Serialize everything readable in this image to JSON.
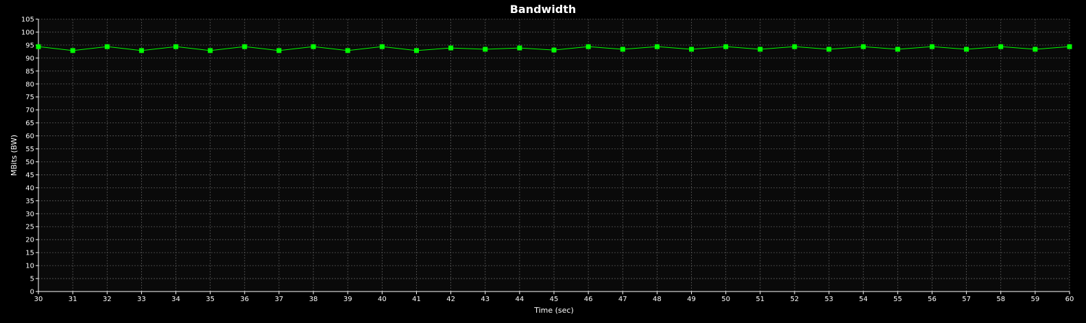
{
  "chart_data": {
    "type": "line",
    "title": "Bandwidth",
    "xlabel": "Time (sec)",
    "ylabel": "MBits (BW)",
    "xlim": [
      30,
      60
    ],
    "ylim": [
      0,
      105
    ],
    "x_ticks": [
      30,
      31,
      32,
      33,
      34,
      35,
      36,
      37,
      38,
      39,
      40,
      41,
      42,
      43,
      44,
      45,
      46,
      47,
      48,
      49,
      50,
      51,
      52,
      53,
      54,
      55,
      56,
      57,
      58,
      59,
      60
    ],
    "y_ticks": [
      0,
      5,
      10,
      15,
      20,
      25,
      30,
      35,
      40,
      45,
      50,
      55,
      60,
      65,
      70,
      75,
      80,
      85,
      90,
      95,
      100,
      105
    ],
    "grid": true,
    "legend": "none",
    "colors": {
      "background": "#000000",
      "plot_background": "#0a0a0a",
      "grid": "#5a5a5a",
      "axis": "#ffffff",
      "series": "#00ff00"
    },
    "series": [
      {
        "x": [
          30,
          31,
          32,
          33,
          34,
          35,
          36,
          37,
          38,
          39,
          40,
          41,
          42,
          43,
          44,
          45,
          46,
          47,
          48,
          49,
          50,
          51,
          52,
          53,
          54,
          55,
          56,
          57,
          58,
          59,
          60
        ],
        "values": [
          94.4,
          92.9,
          94.4,
          92.9,
          94.4,
          92.9,
          94.4,
          92.9,
          94.4,
          92.9,
          94.4,
          92.9,
          93.9,
          93.4,
          93.9,
          93.1,
          94.4,
          93.4,
          94.4,
          93.4,
          94.4,
          93.4,
          94.4,
          93.4,
          94.4,
          93.4,
          94.4,
          93.4,
          94.4,
          93.4,
          94.4
        ]
      }
    ]
  }
}
